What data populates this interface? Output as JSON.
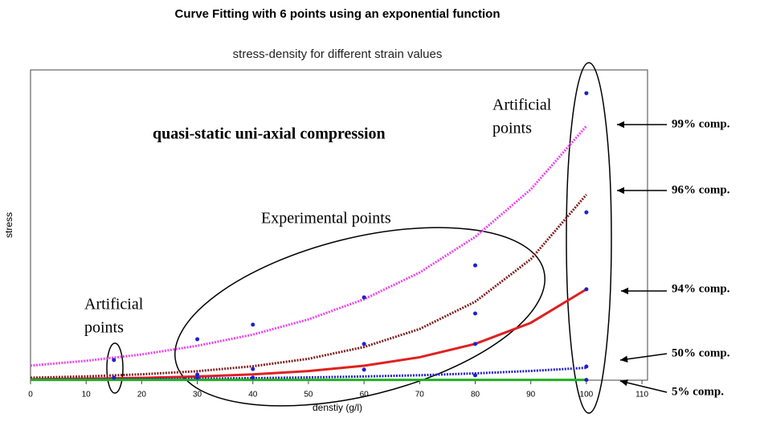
{
  "chart_data": {
    "type": "line",
    "title": "Curve Fitting with 6 points using an exponential function",
    "subtitle": "stress-density for different strain values",
    "x_label": "denstiy (g/l)",
    "y_label": "stress",
    "x": [
      0,
      10,
      20,
      30,
      40,
      50,
      60,
      70,
      80,
      90,
      100
    ],
    "series": [
      {
        "name": "99% comp.",
        "color": "#ee44ee",
        "style": "dotted",
        "values": [
          4.7,
          6.25,
          8.3,
          11.1,
          14.7,
          19.6,
          26.1,
          34.7,
          46.2,
          61.5,
          81.9
        ]
      },
      {
        "name": "96% comp.",
        "color": "#802020",
        "style": "dotted",
        "values": [
          0.8,
          1.23,
          1.9,
          2.9,
          4.5,
          6.9,
          10.7,
          16.5,
          25.3,
          39.0,
          59.8
        ]
      },
      {
        "name": "94% comp.",
        "color": "#e02020",
        "style": "solid",
        "values": [
          0.3,
          0.47,
          0.75,
          1.19,
          1.87,
          2.96,
          4.67,
          7.4,
          11.7,
          18.5,
          29.3
        ]
      },
      {
        "name": "50% comp.",
        "color": "#2020cc",
        "style": "dotted",
        "values": [
          0.2,
          0.27,
          0.36,
          0.49,
          0.66,
          0.9,
          1.2,
          1.6,
          2.2,
          2.98,
          4.0
        ]
      },
      {
        "name": "5% comp.",
        "color": "#20b020",
        "style": "solid",
        "values": [
          0.1,
          0.1,
          0.1,
          0.1,
          0.1,
          0.1,
          0.1,
          0.1,
          0.1,
          0.1,
          0.1
        ]
      }
    ],
    "points": {
      "color": "#2020cc",
      "x": [
        15,
        15,
        30,
        30,
        30,
        40,
        40,
        40,
        60,
        60,
        60,
        80,
        80,
        80,
        80,
        100,
        100,
        100,
        100,
        100
      ],
      "values": [
        6.5,
        0.8,
        13.2,
        1.8,
        0.8,
        17.9,
        3.6,
        0.8,
        26.7,
        11.7,
        3.4,
        37.0,
        21.5,
        11.7,
        1.6,
        92.5,
        54.1,
        29.3,
        4.4,
        0.1
      ]
    },
    "annotations": [
      {
        "lines": [
          "quasi-static uni-axial compression"
        ]
      },
      {
        "lines": [
          "Experimental points"
        ]
      },
      {
        "lines": [
          "Artificial",
          "points"
        ]
      },
      {
        "lines": [
          "Artificial",
          "points"
        ]
      }
    ],
    "xlim": [
      0,
      111
    ],
    "ylim": [
      0,
      100
    ],
    "xticks": [
      0,
      10,
      20,
      30,
      40,
      50,
      60,
      70,
      80,
      90,
      100,
      110
    ],
    "grid": false
  }
}
